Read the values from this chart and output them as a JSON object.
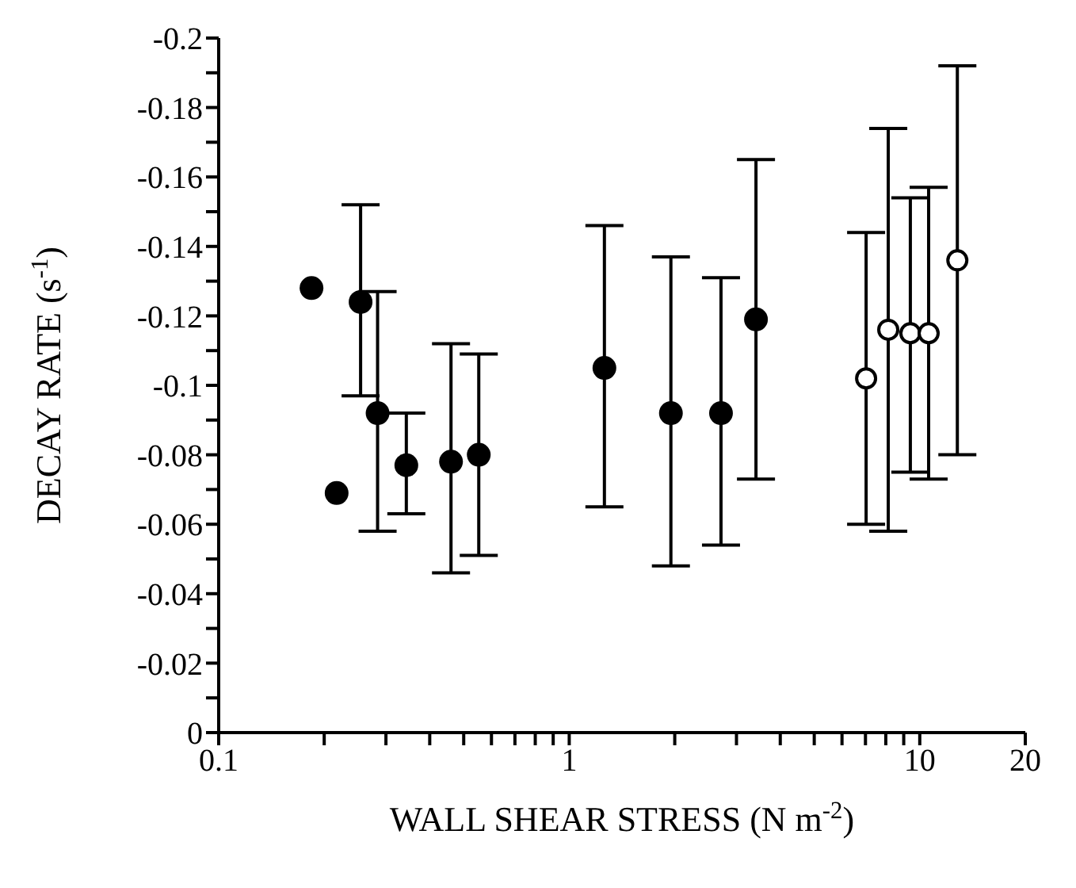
{
  "chart_data": {
    "type": "scatter",
    "xlabel": "WALL SHEAR STRESS (N m$^{-2}$)",
    "ylabel": "DECAY RATE (s$^{-1}$)",
    "log": "x",
    "marker": "circle",
    "grid": false,
    "xlim": [
      0.1,
      20
    ],
    "xticks": [
      0.1,
      {
        "value": 0.2,
        "label": null
      },
      {
        "value": 0.3,
        "label": null
      },
      {
        "value": 0.4,
        "label": null
      },
      {
        "value": 0.5,
        "label": null
      },
      {
        "value": 0.6,
        "label": null
      },
      {
        "value": 0.7,
        "label": null
      },
      {
        "value": 0.8,
        "label": null
      },
      {
        "value": 0.9,
        "label": null
      },
      1,
      {
        "value": 2,
        "label": null
      },
      {
        "value": 3,
        "label": null
      },
      {
        "value": 4,
        "label": null
      },
      {
        "value": 5,
        "label": null
      },
      {
        "value": 6,
        "label": null
      },
      {
        "value": 7,
        "label": null
      },
      {
        "value": 8,
        "label": null
      },
      {
        "value": 9,
        "label": null
      },
      10,
      20
    ],
    "ylim": [
      0,
      -0.2
    ],
    "yticks": [
      0,
      {
        "value": -0.01,
        "label": null
      },
      -0.02,
      {
        "value": -0.03,
        "label": null
      },
      -0.04,
      {
        "value": -0.05,
        "label": null
      },
      -0.06,
      {
        "value": -0.07,
        "label": null
      },
      -0.08,
      {
        "value": -0.09,
        "label": null
      },
      -0.1,
      {
        "value": -0.11,
        "label": null
      },
      -0.12,
      {
        "value": -0.13,
        "label": null
      },
      -0.14,
      {
        "value": -0.15,
        "label": null
      },
      -0.16,
      {
        "value": -0.17,
        "label": null
      },
      -0.18,
      {
        "value": -0.19,
        "label": null
      },
      -0.2
    ],
    "series": [
      {
        "color": "#000000",
        "x": [
          0.184,
          0.217,
          0.254,
          0.284,
          0.343,
          0.46,
          0.552,
          1.26,
          1.95,
          2.71,
          3.41
        ],
        "values": [
          -0.128,
          -0.069,
          -0.124,
          -0.092,
          -0.077,
          -0.078,
          -0.08,
          -0.105,
          -0.092,
          -0.092,
          -0.119
        ],
        "errors": [
          null,
          null,
          [
            -0.152,
            -0.097
          ],
          [
            -0.127,
            -0.058
          ],
          [
            -0.092,
            -0.063
          ],
          [
            -0.112,
            -0.046
          ],
          [
            -0.109,
            -0.051
          ],
          [
            -0.146,
            -0.065
          ],
          [
            -0.137,
            -0.048
          ],
          [
            -0.131,
            -0.054
          ],
          [
            -0.165,
            -0.073
          ]
        ]
      },
      {
        "color": "#000000",
        "x": [
          7.03,
          8.13,
          9.4,
          10.6,
          12.8
        ],
        "values": [
          -0.102,
          -0.116,
          -0.115,
          -0.115,
          -0.136
        ],
        "errors": [
          [
            -0.144,
            -0.06
          ],
          [
            -0.174,
            -0.058
          ],
          [
            -0.154,
            -0.075
          ],
          [
            -0.157,
            -0.073
          ],
          [
            -0.192,
            -0.08
          ]
        ]
      }
    ]
  }
}
